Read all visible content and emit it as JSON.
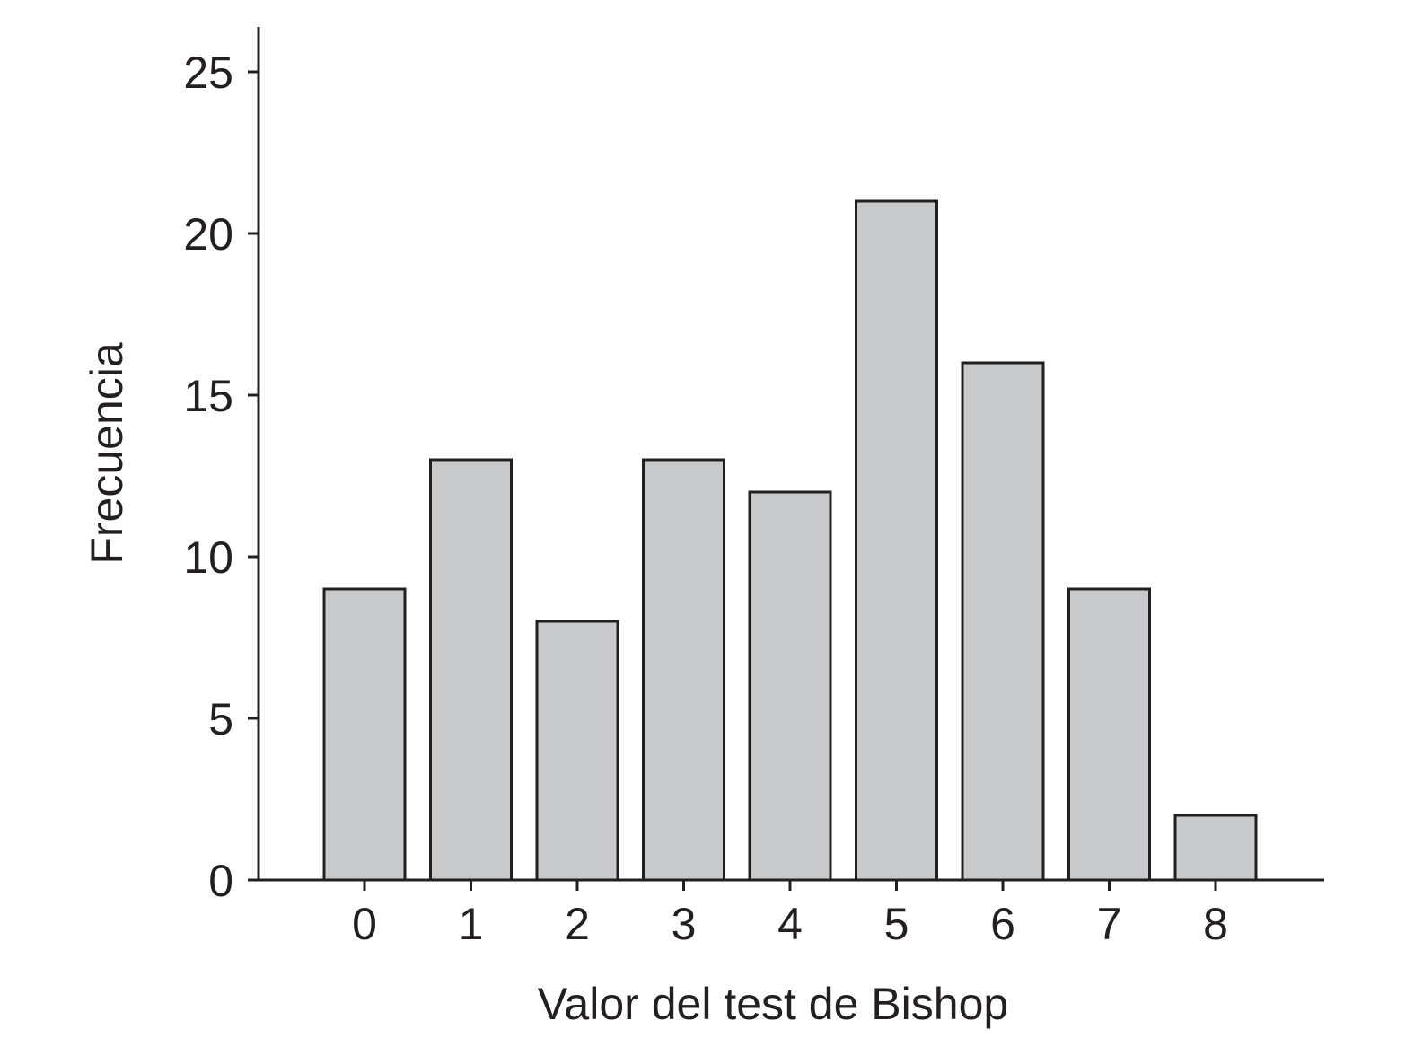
{
  "chart_data": {
    "type": "bar",
    "categories": [
      "0",
      "1",
      "2",
      "3",
      "4",
      "5",
      "6",
      "7",
      "8"
    ],
    "values": [
      9,
      13,
      8,
      13,
      12,
      21,
      16,
      9,
      2
    ],
    "title": "",
    "xlabel": "Valor del test de Bishop",
    "ylabel": "Frecuencia",
    "ylim": [
      0,
      26.5
    ],
    "yticks": [
      0,
      5,
      10,
      15,
      20,
      25
    ],
    "grid": false,
    "legend": "none"
  },
  "colors": {
    "bar_fill": "#c8c9cb",
    "bar_stroke": "#231f20",
    "axis": "#231f20",
    "text": "#231f20"
  }
}
